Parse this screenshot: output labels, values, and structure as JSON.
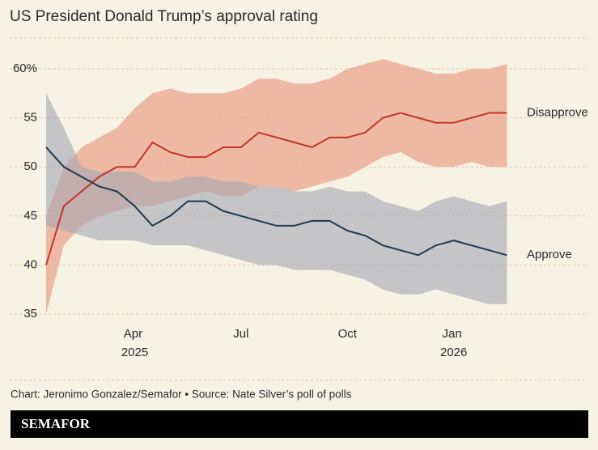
{
  "title": "US President Donald Trump’s approval rating",
  "chart_data": {
    "type": "line",
    "categories": [
      null,
      null,
      null,
      null,
      null,
      "Apr 2025",
      null,
      null,
      null,
      null,
      null,
      "Jul",
      null,
      null,
      null,
      null,
      null,
      "Oct",
      null,
      null,
      null,
      null,
      null,
      "Jan 2026",
      null,
      null,
      null
    ],
    "series": [
      {
        "name": "Disapprove",
        "color": "#c2352a",
        "band_color": "#e9a58f",
        "values": [
          40,
          46,
          47.5,
          49,
          50,
          50,
          52.5,
          51.5,
          51,
          51,
          52,
          52,
          53.5,
          53,
          52.5,
          52,
          53,
          53,
          53.5,
          55,
          55.5,
          55,
          54.5,
          54.5,
          55,
          55.5,
          55.5
        ],
        "band_low": [
          35,
          42,
          44,
          45,
          45.5,
          46,
          46,
          46.5,
          47,
          47.5,
          47,
          47,
          48,
          48,
          47.5,
          48,
          48.5,
          49,
          50,
          51,
          51.5,
          50.5,
          50,
          50,
          50.5,
          50,
          50
        ],
        "band_high": [
          45,
          50,
          52,
          53,
          54,
          56,
          57.5,
          58,
          57.5,
          57.5,
          57.5,
          58,
          59,
          59,
          58.5,
          58.5,
          59,
          60,
          60.5,
          61,
          60.5,
          60,
          59.5,
          59.5,
          60,
          60,
          60.5
        ]
      },
      {
        "name": "Approve",
        "color": "#1f3a4d",
        "band_color": "#a3a7b4",
        "values": [
          52,
          50,
          49,
          48,
          47.5,
          46,
          44,
          45,
          46.5,
          46.5,
          45.5,
          45,
          44.5,
          44,
          44,
          44.5,
          44.5,
          43.5,
          43,
          42,
          41.5,
          41,
          42,
          42.5,
          42,
          41.5,
          41
        ],
        "band_low": [
          44,
          43.5,
          43,
          42.5,
          42.5,
          42.5,
          42,
          42,
          42,
          41.5,
          41,
          40.5,
          40,
          40,
          39.5,
          39.5,
          39.5,
          39,
          38.5,
          37.5,
          37,
          37,
          37.5,
          37,
          36.5,
          36,
          36
        ],
        "band_high": [
          57.5,
          54,
          50,
          49.5,
          49.5,
          49.5,
          48.5,
          48.5,
          49,
          49,
          48.5,
          48.5,
          48,
          48,
          47.5,
          47.5,
          48,
          47.5,
          47.5,
          46.5,
          46,
          45.5,
          46.5,
          47,
          46.5,
          46,
          46.5
        ]
      }
    ],
    "ylim": [
      35,
      60
    ],
    "yticks": [
      35,
      40,
      45,
      50,
      55,
      {
        "value": 60,
        "label": "60%"
      }
    ],
    "grid": true
  },
  "footer": {
    "credit": "Chart: Jeronimo Gonzalez/Semafor • Source: Nate Silver’s poll of polls",
    "brand": "SEMAFOR"
  }
}
